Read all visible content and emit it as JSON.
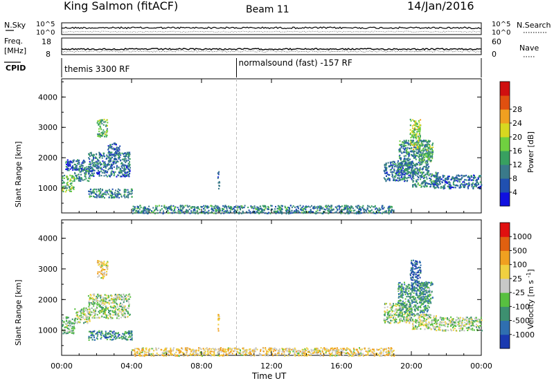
{
  "header": {
    "station": "King Salmon (fitACF)",
    "beam": "Beam 11",
    "date": "14/Jan/2016"
  },
  "params": {
    "nsky_label": "N.Sky",
    "nsearch_label": "N.Search",
    "nsky_ticks": [
      "10^5",
      "10^0"
    ],
    "nsearch_ticks": [
      "10^5",
      "10^0"
    ],
    "freq_label": "Freq.",
    "freq_unit": "[MHz]",
    "freq_ticks": [
      "18",
      "8"
    ],
    "nave_label": "Nave",
    "nave_ticks": [
      "60",
      "0"
    ],
    "cpid_label": "CPID",
    "cpid_segments": [
      {
        "start_hour": 0,
        "end_hour": 10,
        "label": "themis 3300 RF"
      },
      {
        "start_hour": 10,
        "end_hour": 24,
        "label": "normalsound (fast) -157 RF"
      }
    ]
  },
  "chart_data": [
    {
      "type": "heatmap",
      "quantity": "Power",
      "ylabel": "Slant Range [km]",
      "xlabel": "",
      "xlim_hours": [
        0,
        24
      ],
      "ylim": [
        180,
        4600
      ],
      "yticks": [
        "1000",
        "2000",
        "3000",
        "4000"
      ],
      "xticks": [
        "00:00",
        "04:00",
        "08:00",
        "12:00",
        "16:00",
        "20:00",
        "00:00"
      ],
      "colorbar": {
        "label": "Power [dB]",
        "ticks": [
          "4",
          "8",
          "12",
          "16",
          "20",
          "24",
          "28"
        ],
        "colors": [
          "#1010e0",
          "#2050b0",
          "#3a7a8a",
          "#38a060",
          "#70d040",
          "#d8d820",
          "#f0a020",
          "#e05010",
          "#d01010"
        ]
      },
      "regions": [
        {
          "t0": 0.0,
          "t1": 0.7,
          "r0": 900,
          "r1": 1450,
          "level": 0.45
        },
        {
          "t0": 0.7,
          "t1": 1.6,
          "r0": 1250,
          "r1": 1750,
          "level": 0.3
        },
        {
          "t0": 1.5,
          "t1": 3.9,
          "r0": 1400,
          "r1": 2200,
          "level": 0.25
        },
        {
          "t0": 2.6,
          "t1": 3.3,
          "r0": 2100,
          "r1": 2500,
          "level": 0.2
        },
        {
          "t0": 2.0,
          "t1": 2.6,
          "r0": 2700,
          "r1": 3300,
          "level": 0.45
        },
        {
          "t0": 1.5,
          "t1": 4.0,
          "r0": 700,
          "r1": 1000,
          "level": 0.3
        },
        {
          "t0": 0.2,
          "t1": 1.3,
          "r0": 1600,
          "r1": 1950,
          "level": 0.2
        },
        {
          "t0": 8.9,
          "t1": 9.0,
          "r0": 1000,
          "r1": 1600,
          "level": 0.2
        },
        {
          "t0": 18.4,
          "t1": 20.0,
          "r0": 1250,
          "r1": 1900,
          "level": 0.25
        },
        {
          "t0": 19.2,
          "t1": 21.0,
          "r0": 1500,
          "r1": 2600,
          "level": 0.3
        },
        {
          "t0": 20.0,
          "t1": 21.5,
          "r0": 1050,
          "r1": 1550,
          "level": 0.3
        },
        {
          "t0": 21.2,
          "t1": 24.0,
          "r0": 1000,
          "r1": 1450,
          "level": 0.25
        },
        {
          "t0": 19.9,
          "t1": 20.5,
          "r0": 2300,
          "r1": 3300,
          "level": 0.55
        },
        {
          "t0": 20.4,
          "t1": 21.2,
          "r0": 1900,
          "r1": 2600,
          "level": 0.4
        },
        {
          "t0": 4.0,
          "t1": 19.0,
          "r0": 180,
          "r1": 450,
          "level": 0.3
        }
      ]
    },
    {
      "type": "heatmap",
      "quantity": "Velocity",
      "ylabel": "Slant Range [km]",
      "xlabel": "Time UT",
      "xlim_hours": [
        0,
        24
      ],
      "ylim": [
        180,
        4600
      ],
      "yticks": [
        "1000",
        "2000",
        "3000",
        "4000"
      ],
      "xticks": [
        "00:00",
        "04:00",
        "08:00",
        "12:00",
        "16:00",
        "20:00",
        "00:00"
      ],
      "colorbar": {
        "label": "Velocity [m s^-1]",
        "ticks": [
          "1000",
          "500",
          "100",
          "25",
          "-25",
          "-100",
          "-500",
          "-1000"
        ],
        "colors": [
          "#1a3ab0",
          "#2f6fb0",
          "#3d9070",
          "#58c040",
          "#c8c8c8",
          "#f0d040",
          "#f0a020",
          "#e06010",
          "#e01010"
        ]
      },
      "regions": [
        {
          "t0": 0.0,
          "t1": 0.7,
          "r0": 900,
          "r1": 1450,
          "level": 0.4
        },
        {
          "t0": 0.7,
          "t1": 1.6,
          "r0": 1250,
          "r1": 1750,
          "level": 0.45
        },
        {
          "t0": 1.5,
          "t1": 3.9,
          "r0": 1400,
          "r1": 2200,
          "level": 0.45
        },
        {
          "t0": 2.0,
          "t1": 2.6,
          "r0": 2700,
          "r1": 3300,
          "level": 0.6
        },
        {
          "t0": 1.5,
          "t1": 4.0,
          "r0": 700,
          "r1": 1000,
          "level": 0.25
        },
        {
          "t0": 8.9,
          "t1": 9.0,
          "r0": 1000,
          "r1": 1600,
          "level": 0.65
        },
        {
          "t0": 18.4,
          "t1": 20.0,
          "r0": 1250,
          "r1": 1900,
          "level": 0.45
        },
        {
          "t0": 19.2,
          "t1": 21.0,
          "r0": 1500,
          "r1": 2600,
          "level": 0.3
        },
        {
          "t0": 20.0,
          "t1": 21.5,
          "r0": 1050,
          "r1": 1550,
          "level": 0.5
        },
        {
          "t0": 21.2,
          "t1": 24.0,
          "r0": 1000,
          "r1": 1450,
          "level": 0.45
        },
        {
          "t0": 19.9,
          "t1": 20.5,
          "r0": 2300,
          "r1": 3300,
          "level": 0.15
        },
        {
          "t0": 20.4,
          "t1": 21.2,
          "r0": 1900,
          "r1": 2600,
          "level": 0.3
        },
        {
          "t0": 4.0,
          "t1": 19.0,
          "r0": 180,
          "r1": 450,
          "level": 0.6
        }
      ]
    }
  ]
}
